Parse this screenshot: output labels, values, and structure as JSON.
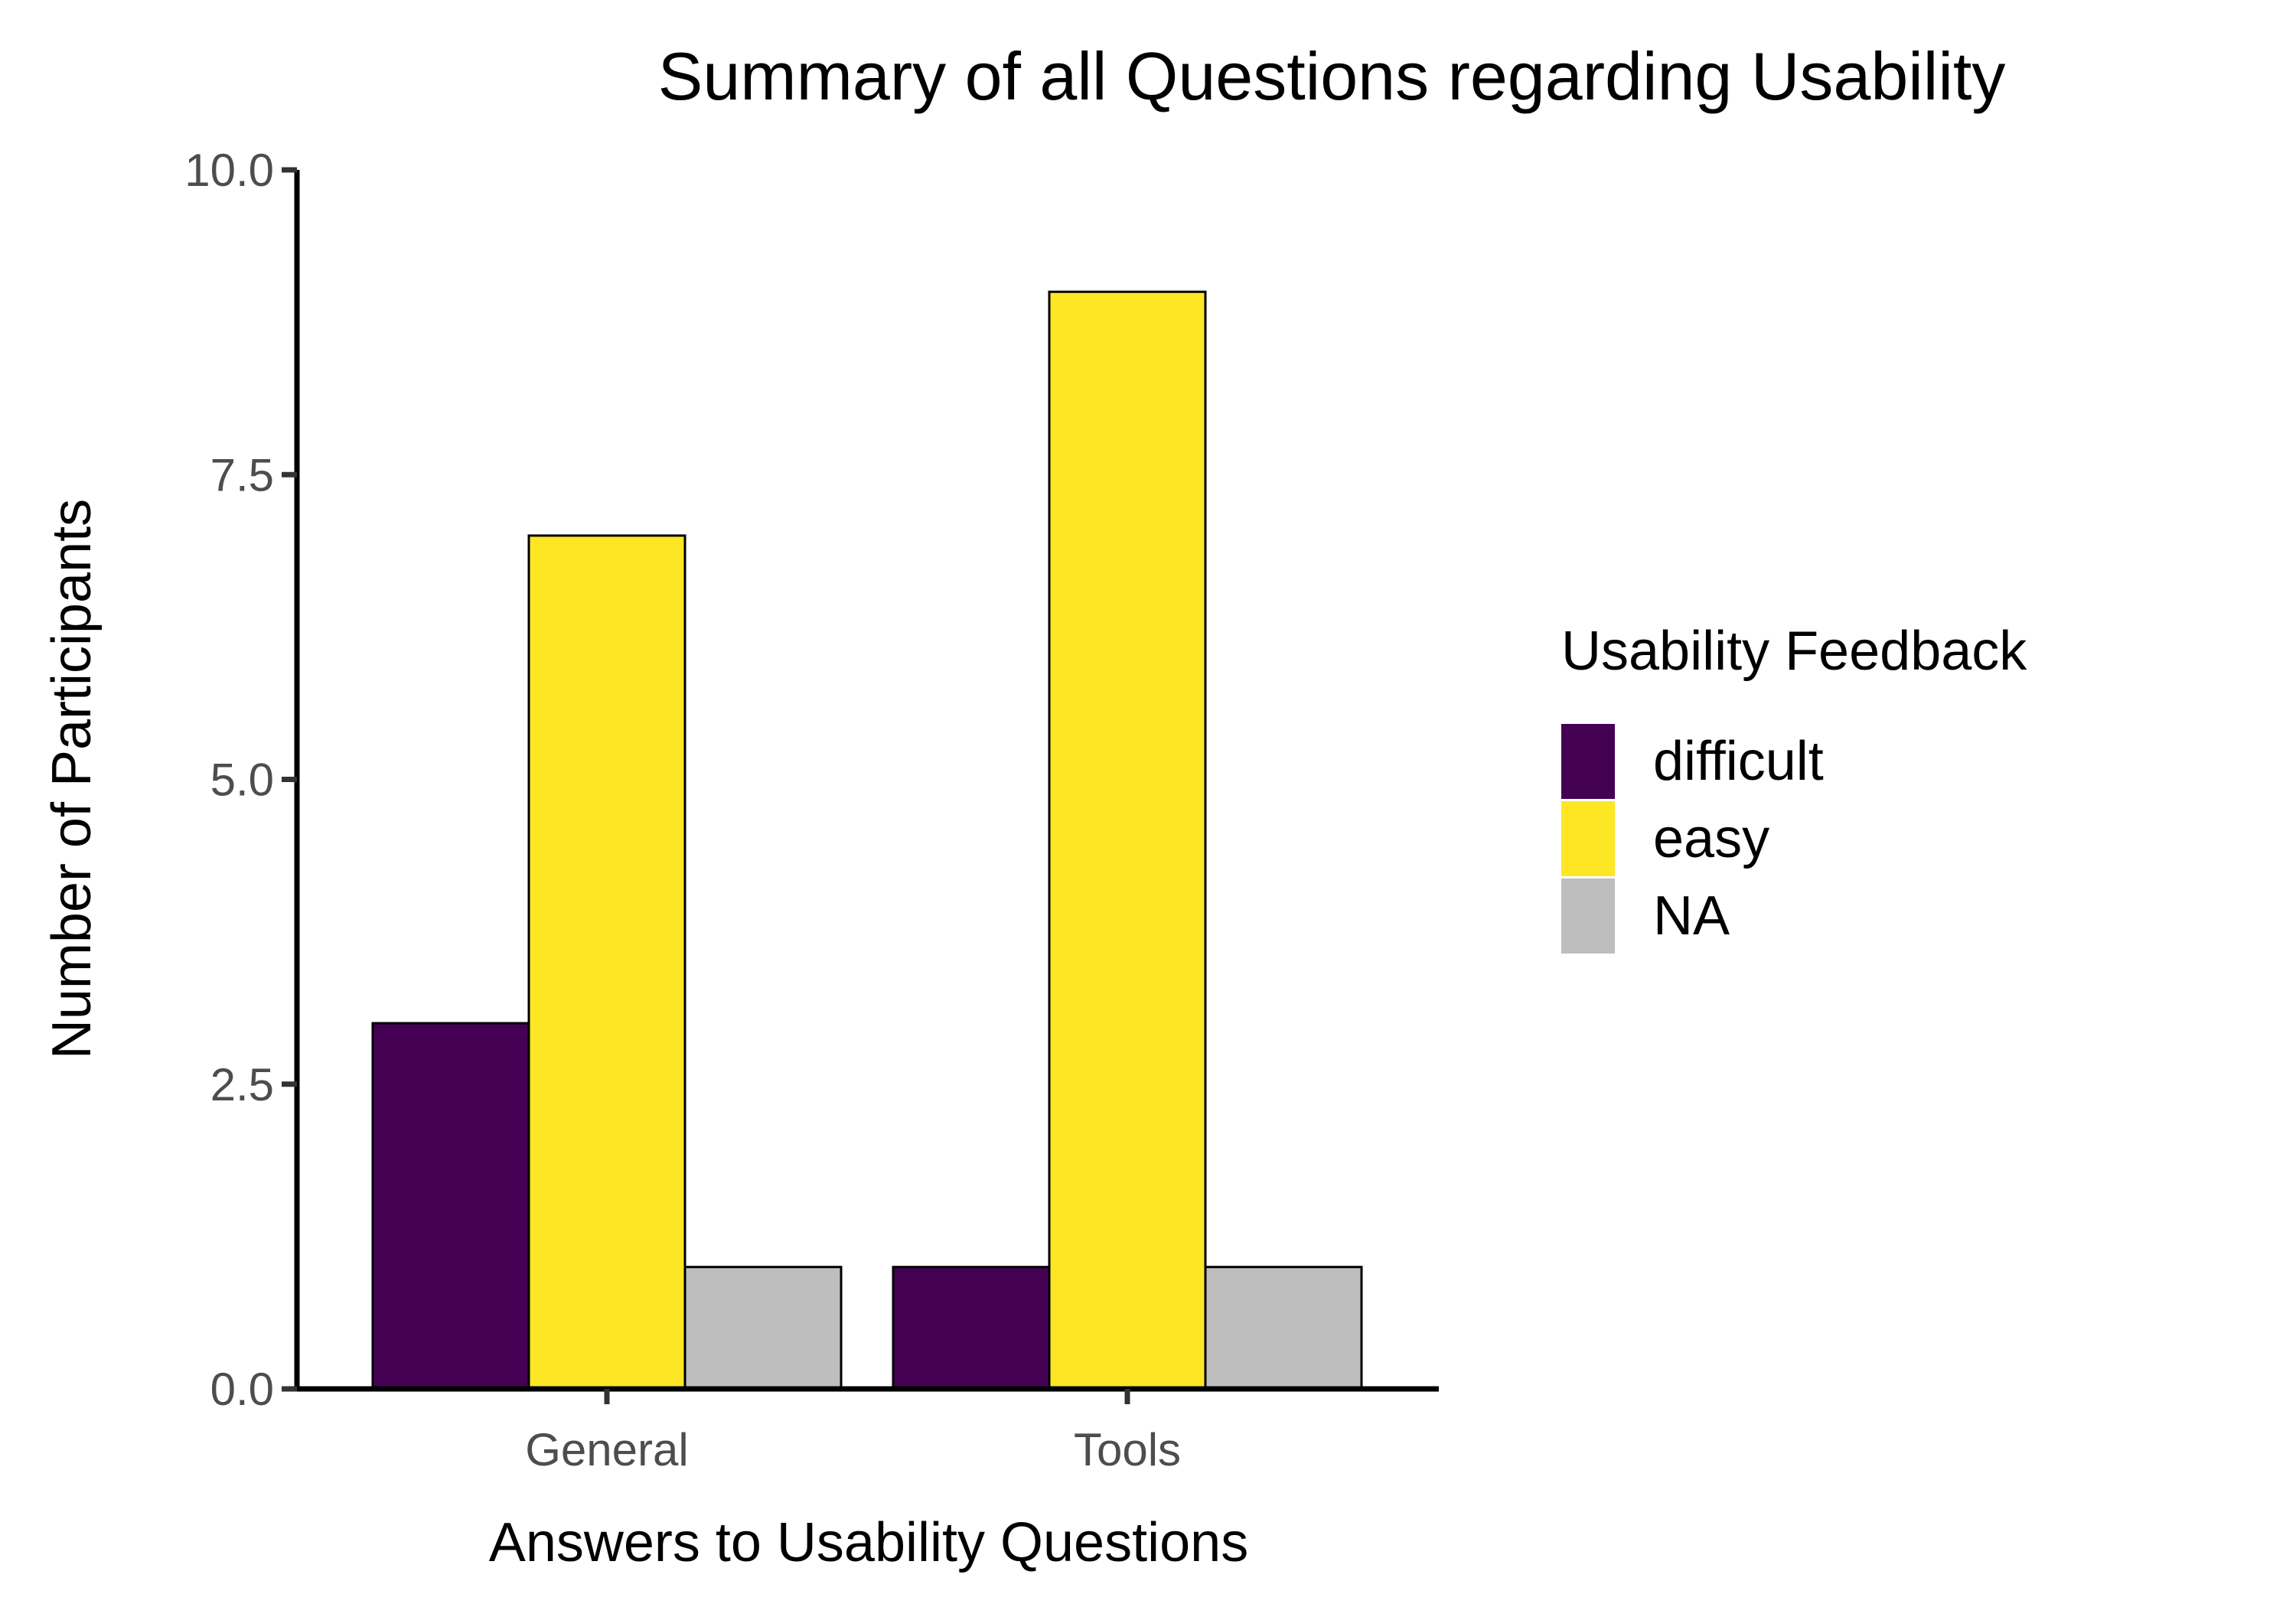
{
  "chart_data": {
    "type": "bar",
    "title": "Summary of all Questions regarding Usability",
    "xlabel": "Answers to Usability Questions",
    "ylabel": "Number of Participants",
    "categories": [
      "General",
      "Tools"
    ],
    "series": [
      {
        "name": "difficult",
        "values": [
          3,
          1
        ],
        "color": "#440154"
      },
      {
        "name": "easy",
        "values": [
          7,
          9
        ],
        "color": "#FDE725"
      },
      {
        "name": "NA",
        "values": [
          1,
          1
        ],
        "color": "#BEBEBE"
      }
    ],
    "ylim": [
      0,
      10
    ],
    "yticks": [
      "0.0",
      "2.5",
      "5.0",
      "7.5",
      "10.0"
    ],
    "legend": {
      "title": "Usability Feedback",
      "position": "right"
    },
    "grid": false
  }
}
